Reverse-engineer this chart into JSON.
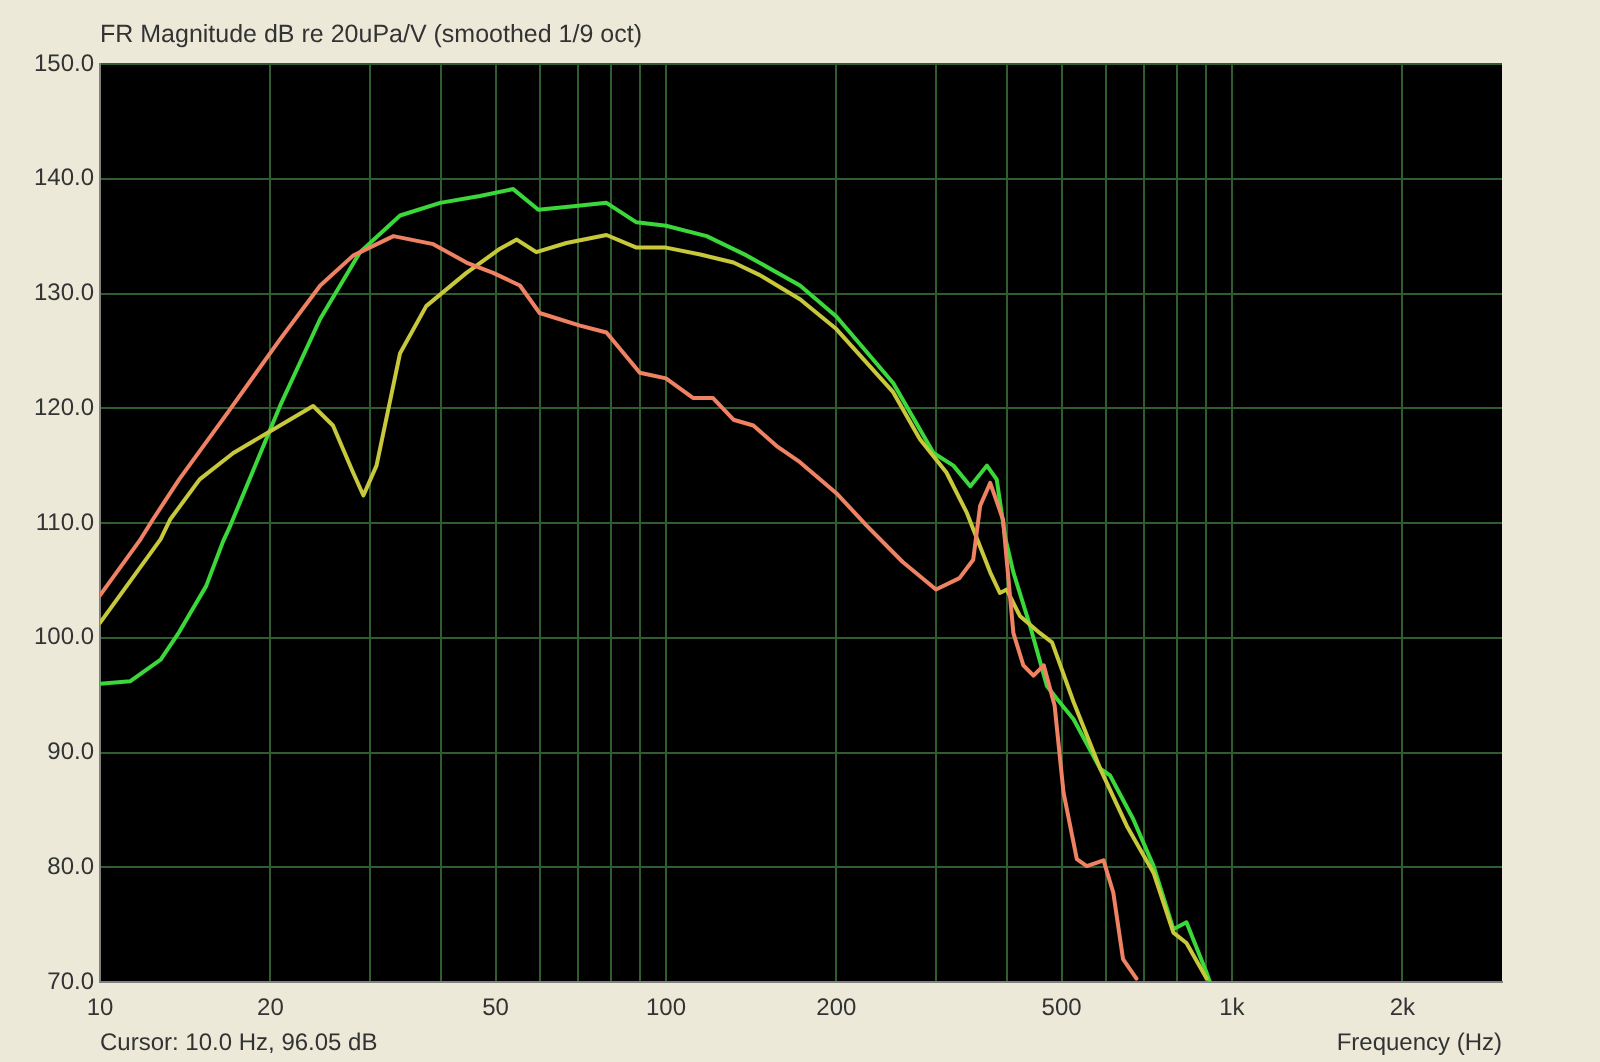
{
  "chart_data": {
    "type": "line",
    "title": "FR Magnitude dB re 20uPa/V (smoothed 1/9 oct)",
    "xlabel": "Frequency (Hz)",
    "annotations": [
      "Cursor: 10.0 Hz, 96.05 dB"
    ],
    "log": "x",
    "grid": true,
    "marker": "none",
    "line_style": "solid",
    "xlim": [
      10,
      3000
    ],
    "xticks": [
      10,
      20,
      {
        "value": 30,
        "label": null
      },
      {
        "value": 40,
        "label": null
      },
      50,
      {
        "value": 60,
        "label": null
      },
      {
        "value": 70,
        "label": null
      },
      {
        "value": 80,
        "label": null
      },
      {
        "value": 90,
        "label": null
      },
      100,
      200,
      {
        "value": 300,
        "label": null
      },
      {
        "value": 400,
        "label": null
      },
      500,
      {
        "value": 600,
        "label": null
      },
      {
        "value": 700,
        "label": null
      },
      {
        "value": 800,
        "label": null
      },
      {
        "value": 900,
        "label": null
      },
      {
        "value": 1000,
        "label": "1k"
      },
      {
        "value": 2000,
        "label": "2k"
      }
    ],
    "ylim": [
      70,
      150
    ],
    "yticks": [
      {
        "value": 70,
        "label": "70.0"
      },
      {
        "value": 80,
        "label": "80.0"
      },
      {
        "value": 90,
        "label": "90.0"
      },
      {
        "value": 100,
        "label": "100.0"
      },
      {
        "value": 110,
        "label": "110.0"
      },
      {
        "value": 120,
        "label": "120.0"
      },
      {
        "value": 130,
        "label": "130.0"
      },
      {
        "value": 140,
        "label": "140.0"
      },
      {
        "value": 150,
        "label": "150.0"
      }
    ],
    "series": [
      {
        "color": "#f08264",
        "x": [
          10,
          11.8,
          12.4,
          13.8,
          16.8,
          20.8,
          24.5,
          28,
          33,
          38.8,
          44.4,
          49.5,
          55.2,
          59.8,
          70.5,
          78.5,
          89.9,
          100,
          111.6,
          121,
          131.6,
          142.7,
          156.9,
          172.5,
          200,
          226,
          262,
          300,
          330,
          349,
          359,
          374,
          394,
          411,
          428,
          446,
          465,
          486,
          504,
          532,
          554,
          593,
          617,
          642,
          678
        ],
        "values": [
          103.7,
          108.6,
          110.3,
          113.8,
          119.6,
          126,
          130.7,
          133.3,
          135,
          134.3,
          132.7,
          131.8,
          130.7,
          128.3,
          127.2,
          126.6,
          123.1,
          122.6,
          120.9,
          120.9,
          119,
          118.5,
          116.7,
          115.3,
          112.6,
          109.8,
          106.6,
          104.2,
          105.2,
          106.8,
          111.5,
          113.5,
          110.3,
          100.4,
          97.6,
          96.7,
          97.6,
          94.1,
          86.5,
          80.7,
          80.1,
          80.6,
          77.8,
          72,
          70.3
        ]
      },
      {
        "color": "#c8c83c",
        "x": [
          10,
          12.8,
          13.3,
          15,
          17.2,
          20.8,
          23.8,
          25.8,
          28,
          29.2,
          30.8,
          33.9,
          37.7,
          44.4,
          50.9,
          54.5,
          59,
          66.7,
          78.5,
          88.7,
          100,
          115,
          131.6,
          146.5,
          172.5,
          200,
          252,
          281,
          313,
          340,
          374,
          389,
          400,
          422,
          458,
          481,
          525,
          585,
          652,
          727,
          788,
          831,
          902
        ],
        "values": [
          101.3,
          108.6,
          110.3,
          113.8,
          116.1,
          118.5,
          120.2,
          118.5,
          114.4,
          112.4,
          115,
          124.8,
          128.9,
          131.8,
          133.9,
          134.7,
          133.6,
          134.4,
          135.1,
          134,
          134,
          133.4,
          132.7,
          131.6,
          129.5,
          126.9,
          121.4,
          117.3,
          114.4,
          110.9,
          105.7,
          103.9,
          104.2,
          101.9,
          100.4,
          99.6,
          94.4,
          88.6,
          83.6,
          79.5,
          74.3,
          73.4,
          70.3
        ]
      },
      {
        "color": "#3ad83a",
        "x": [
          10,
          11.3,
          12.8,
          13.8,
          15.4,
          16.5,
          17,
          20.8,
          24.5,
          28.8,
          33.9,
          39.9,
          46.9,
          53.7,
          59.5,
          68.6,
          78.5,
          88.7,
          100,
          118,
          139,
          172.5,
          200,
          252,
          297,
          322,
          345,
          369,
          384,
          398,
          411,
          440,
          471,
          490,
          525,
          585,
          609,
          669,
          727,
          788,
          831,
          902,
          914
        ],
        "values": [
          96,
          96.2,
          98.1,
          100.5,
          104.5,
          108.4,
          109.8,
          120.2,
          127.8,
          133.6,
          136.8,
          137.9,
          138.5,
          139.1,
          137.3,
          137.6,
          137.9,
          136.2,
          135.9,
          135,
          133.3,
          130.7,
          128,
          122.2,
          116.1,
          115,
          113.2,
          115,
          113.8,
          108.6,
          105.7,
          101,
          95.8,
          94.7,
          92.9,
          88.6,
          88,
          84.2,
          80.1,
          74.6,
          75.2,
          70.8,
          70
        ]
      }
    ]
  }
}
